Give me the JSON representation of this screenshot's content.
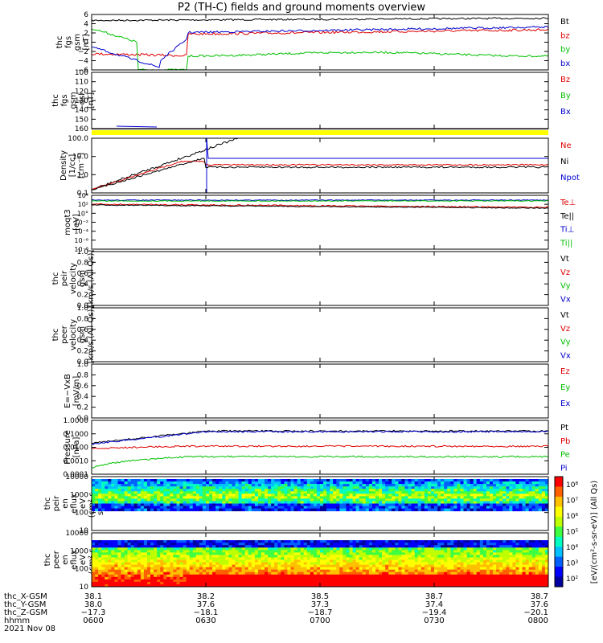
{
  "title": "P2 (TH-C) fields and ground moments overview",
  "colors": {
    "black": "#000000",
    "red": "#e00000",
    "green": "#00c000",
    "blue": "#0000d0",
    "yellow": "#ffff00"
  },
  "panels": [
    {
      "id": "fgs",
      "ylabel": [
        "thc",
        "fgs",
        "gsm",
        "[nT]"
      ],
      "yticks": [
        "6",
        "4",
        "2",
        "0",
        "−2",
        "−4",
        "−6"
      ],
      "ylim": [
        -6,
        6
      ],
      "legend": [
        {
          "t": "Bt",
          "c": "black"
        },
        {
          "t": "bz",
          "c": "red"
        },
        {
          "t": "by",
          "c": "green"
        },
        {
          "t": "bx",
          "c": "blue"
        }
      ]
    },
    {
      "id": "fgs_dsl",
      "ylabel": [
        "thc",
        "fgs",
        "gsm",
        "-dsl",
        "[nT]"
      ],
      "yticks": [
        "100",
        "110",
        "120",
        "130",
        "140",
        "150",
        "160"
      ],
      "ylim": [
        100,
        165
      ],
      "legend": [
        {
          "t": "Bz",
          "c": "red"
        },
        {
          "t": "By",
          "c": "green"
        },
        {
          "t": "Bx",
          "c": "blue"
        }
      ]
    },
    {
      "id": "density",
      "ylabel": [
        "Density",
        "[1/cc]",
        "[cm⁻³]"
      ],
      "yticks": [
        "100.0",
        "10.0",
        "1.0",
        "0.1"
      ],
      "legend": [
        {
          "t": "Ne",
          "c": "red"
        },
        {
          "t": "Ni",
          "c": "black"
        },
        {
          "t": "Npot",
          "c": "blue"
        }
      ]
    },
    {
      "id": "temp",
      "ylabel": [
        "moqt3",
        "[eV]"
      ],
      "yticks": [
        "10⁴",
        "10²",
        "10°",
        "10⁻²",
        "10⁻⁴",
        "10⁻⁶",
        "10⁻⁸"
      ],
      "legend": [
        {
          "t": "Te⊥",
          "c": "red"
        },
        {
          "t": "Te||",
          "c": "black"
        },
        {
          "t": "Ti⊥",
          "c": "blue"
        },
        {
          "t": "Ti||",
          "c": "green"
        }
      ]
    },
    {
      "id": "vi",
      "ylabel": [
        "thc",
        "peir",
        "velocity",
        "gsm",
        "[km/s (All Qs)]"
      ],
      "yticks": [
        "1.0",
        "0.8",
        "0.6",
        "0.4",
        "0.2",
        "0.0"
      ],
      "legend": [
        {
          "t": "Vt",
          "c": "black"
        },
        {
          "t": "Vz",
          "c": "red"
        },
        {
          "t": "Vy",
          "c": "green"
        },
        {
          "t": "Vx",
          "c": "blue"
        }
      ]
    },
    {
      "id": "ve",
      "ylabel": [
        "thc",
        "peer",
        "velocity",
        "gsm",
        "[km/s (All Qs)]"
      ],
      "yticks": [
        "1.0",
        "0.8",
        "0.6",
        "0.4",
        "0.2",
        "0.0"
      ],
      "legend": [
        {
          "t": "Vt",
          "c": "black"
        },
        {
          "t": "Vz",
          "c": "red"
        },
        {
          "t": "Vy",
          "c": "green"
        },
        {
          "t": "Vx",
          "c": "blue"
        }
      ]
    },
    {
      "id": "efield",
      "ylabel": [
        "E=−VxB",
        "[mV/m]"
      ],
      "yticks": [
        "1.0",
        "0.8",
        "0.6",
        "0.4",
        "0.2",
        "0.0"
      ],
      "legend": [
        {
          "t": "Ez",
          "c": "red"
        },
        {
          "t": "Ey",
          "c": "green"
        },
        {
          "t": "Ex",
          "c": "blue"
        }
      ]
    },
    {
      "id": "pressure",
      "ylabel": [
        "Pressure",
        "[nPa]"
      ],
      "yticks": [
        "1.0000",
        "0.1000",
        "0.0100",
        "0.0010",
        "0.0001"
      ],
      "legend": [
        {
          "t": "Pt",
          "c": "black"
        },
        {
          "t": "Pb",
          "c": "red"
        },
        {
          "t": "Pe",
          "c": "green"
        },
        {
          "t": "Pi",
          "c": "blue"
        }
      ]
    },
    {
      "id": "ispec",
      "ylabel": [
        "thc",
        "peir",
        "en",
        "eflux",
        "eV",
        "(cm²-s-",
        "sr-eV)"
      ],
      "yticks": [
        "10000",
        "1000",
        "100",
        "10"
      ]
    },
    {
      "id": "espec",
      "ylabel": [
        "thc",
        "peer",
        "en",
        "eflux",
        "eV",
        "(cm²-s-",
        "sr-eV)"
      ],
      "yticks": [
        "10000",
        "1000",
        "100",
        "10"
      ]
    }
  ],
  "colorbar": {
    "ticks": [
      "10⁸",
      "10⁷",
      "10⁶",
      "10⁵",
      "10⁴",
      "10³",
      "10²"
    ],
    "label": "[eV/(cm²-s-sr-eV)] (All Qs)"
  },
  "xaxis": {
    "rows": [
      {
        "name": "thc_X-GSM",
        "vals": [
          "38.1",
          "38.2",
          "38.5",
          "38.7",
          "38.7"
        ]
      },
      {
        "name": "thc_Y-GSM",
        "vals": [
          "38.0",
          "37.6",
          "37.3",
          "37.4",
          "37.6"
        ]
      },
      {
        "name": "thc_Z-GSM",
        "vals": [
          "−17.3",
          "−18.1",
          "−18.7",
          "−19.4",
          "−20.1"
        ]
      },
      {
        "name": "hhmm",
        "vals": [
          "0600",
          "0630",
          "0700",
          "0730",
          "0800"
        ]
      }
    ],
    "date": "2021 Nov 08"
  },
  "chart_data": [
    {
      "type": "line",
      "name": "fgs gsm",
      "x": [
        "0600",
        "0630",
        "0700",
        "0730",
        "0800"
      ],
      "series": [
        {
          "name": "Bt",
          "values": [
            4.5,
            5,
            5,
            5,
            5
          ]
        },
        {
          "name": "bz",
          "values": [
            -2,
            -4,
            1.5,
            2,
            2.5
          ]
        },
        {
          "name": "by",
          "values": [
            3,
            -6,
            -2.5,
            -3,
            -2.5
          ]
        },
        {
          "name": "bx",
          "values": [
            -1,
            -5,
            2.5,
            3,
            3
          ]
        }
      ]
    },
    {
      "type": "line",
      "name": "density",
      "x": [
        "0600",
        "0630",
        "0700",
        "0730",
        "0800"
      ],
      "series": [
        {
          "name": "Ne",
          "values": [
            0.1,
            5,
            2,
            2,
            2
          ]
        },
        {
          "name": "Ni",
          "values": [
            0.1,
            2,
            1.5,
            1.5,
            1.5
          ]
        },
        {
          "name": "Npot",
          "values": [
            null,
            10,
            10,
            10,
            10
          ]
        }
      ]
    },
    {
      "type": "line",
      "name": "pressure",
      "x": [
        "0600",
        "0630",
        "0700",
        "0730",
        "0800"
      ],
      "series": [
        {
          "name": "Pt",
          "values": [
            0.02,
            0.1,
            0.15,
            0.15,
            0.15
          ]
        },
        {
          "name": "Pb",
          "values": [
            0.01,
            0.012,
            0.01,
            0.01,
            0.01
          ]
        },
        {
          "name": "Pe",
          "values": [
            0.0003,
            0.003,
            0.002,
            0.0015,
            0.002
          ]
        },
        {
          "name": "Pi",
          "values": [
            0.015,
            0.09,
            0.14,
            0.14,
            0.15
          ]
        }
      ]
    },
    {
      "type": "heatmap",
      "name": "ion energy flux",
      "ylim": [
        5,
        20000
      ]
    },
    {
      "type": "heatmap",
      "name": "electron energy flux",
      "ylim": [
        5,
        20000
      ]
    }
  ]
}
